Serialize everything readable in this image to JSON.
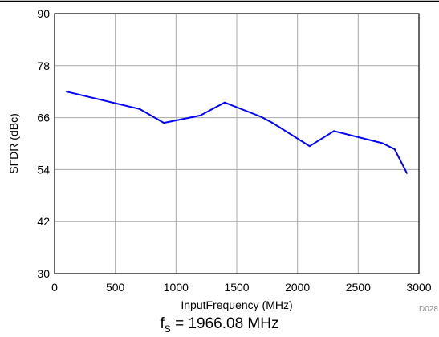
{
  "chart_data": {
    "type": "line",
    "xlabel": "InputFrequency (MHz)",
    "ylabel": "SFDR (dBc)",
    "xlim": [
      0,
      3000
    ],
    "ylim": [
      30,
      90
    ],
    "xticks": [
      0,
      500,
      1000,
      1500,
      2000,
      2500,
      3000
    ],
    "yticks": [
      30,
      42,
      54,
      66,
      78,
      90
    ],
    "grid": true,
    "series": [
      {
        "color": "#0000ff",
        "x": [
          100,
          700,
          900,
          1200,
          1400,
          1700,
          1800,
          2100,
          2300,
          2700,
          2800,
          2900
        ],
        "y": [
          72,
          68,
          64.8,
          66.5,
          69.5,
          66.2,
          64.7,
          59.4,
          62.9,
          60.1,
          58.7,
          53.2
        ]
      }
    ],
    "figure_code": "D028",
    "caption": {
      "symbol": "f",
      "subscript": "S",
      "text": " = 1966.08 MHz"
    }
  }
}
